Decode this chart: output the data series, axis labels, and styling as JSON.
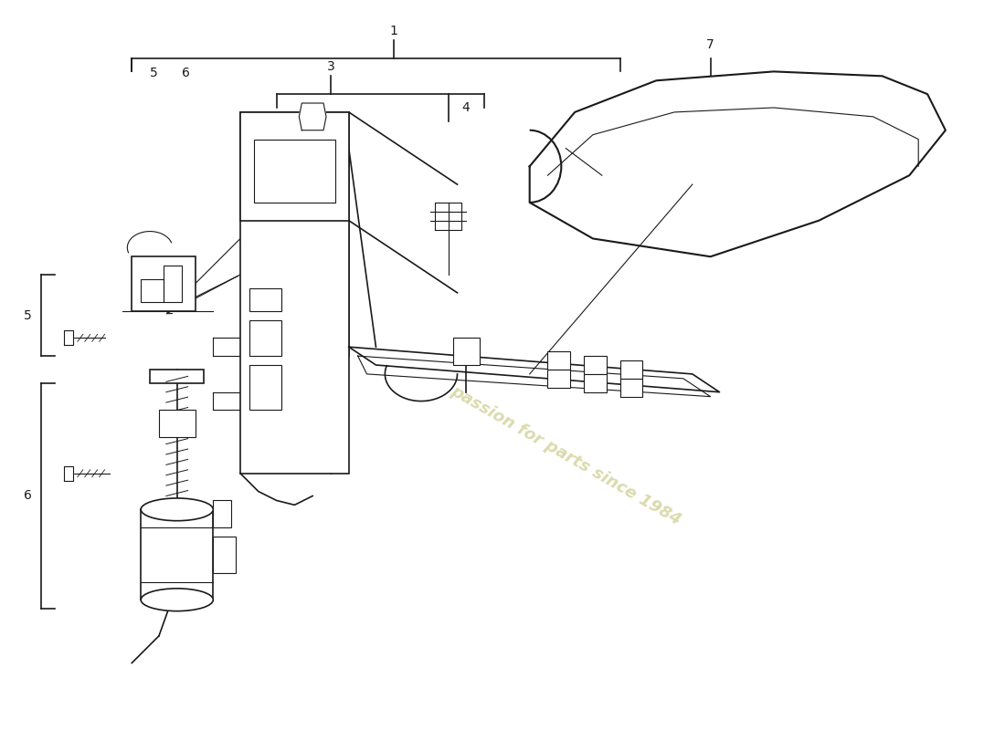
{
  "background_color": "#ffffff",
  "line_color": "#1a1a1a",
  "watermark_text": "passion for parts since 1984",
  "watermark_color": "#d4d4a0",
  "figsize": [
    11.0,
    8.0
  ],
  "dpi": 100
}
